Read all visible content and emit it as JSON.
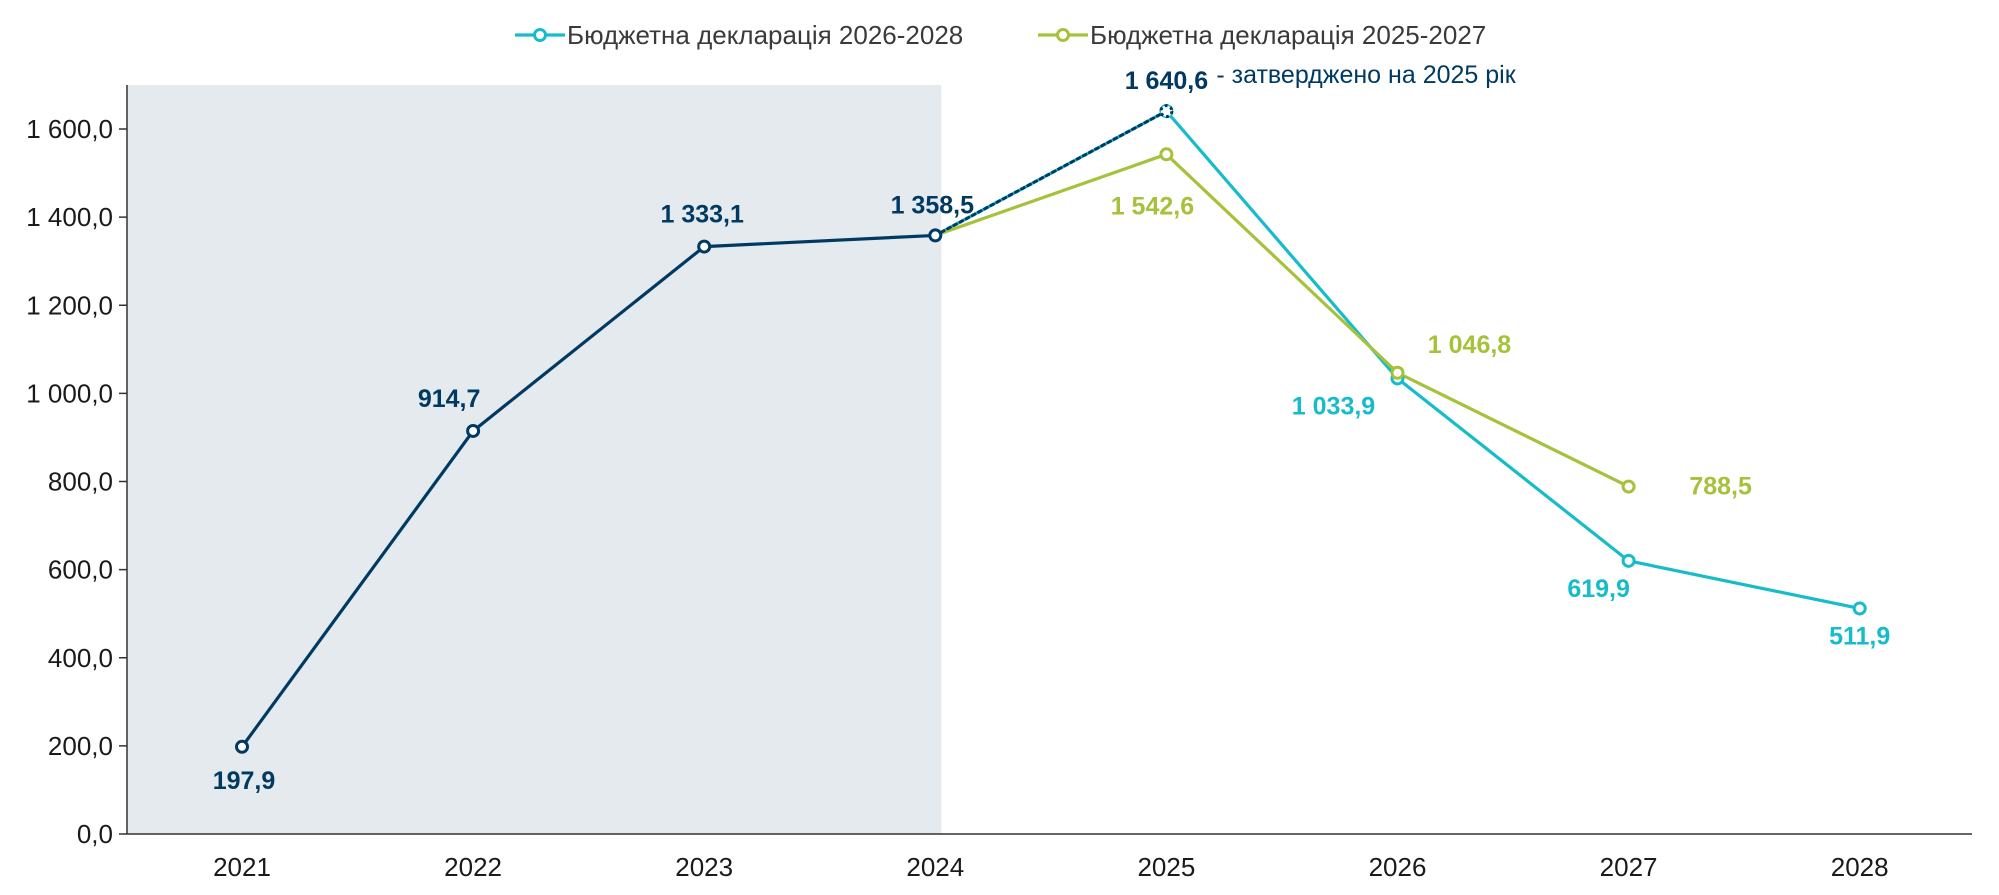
{
  "colors": {
    "actual": "#003a63",
    "decl_2026_2028": "#17bccb",
    "decl_2025_2027": "#a6c13a",
    "shade": "#e5eaef",
    "axis": "#333333"
  },
  "chart_data": {
    "type": "line",
    "x": [
      "2021",
      "2022",
      "2023",
      "2024",
      "2025",
      "2026",
      "2027",
      "2028"
    ],
    "ylim": [
      0,
      1700
    ],
    "yticks": [
      0,
      200,
      400,
      600,
      800,
      1000,
      1200,
      1400,
      1600
    ],
    "ytick_labels": [
      "0,0",
      "200,0",
      "400,0",
      "600,0",
      "800,0",
      "1 000,0",
      "1 200,0",
      "1 400,0",
      "1 600,0"
    ],
    "grid": false,
    "legend_position": "top-center",
    "shaded_period": [
      "2021",
      "2024"
    ],
    "series": [
      {
        "key": "actual",
        "x": [
          "2021",
          "2022",
          "2023",
          "2024"
        ],
        "values": [
          197.9,
          914.7,
          1333.1,
          1358.5
        ],
        "labels": [
          "197,9",
          "914,7",
          "1 333,1",
          "1 358,5"
        ]
      },
      {
        "key": "decl_2026_2028",
        "name": "Бюджетна декларація 2026-2028",
        "x": [
          "2024",
          "2025",
          "2026",
          "2027",
          "2028"
        ],
        "values": [
          1358.5,
          1640.6,
          1033.9,
          619.9,
          511.9
        ],
        "labels": [
          "",
          "",
          "1 033,9",
          "619,9",
          "511,9"
        ]
      },
      {
        "key": "decl_2025_2027",
        "name": "Бюджетна декларація 2025-2027",
        "x": [
          "2024",
          "2025",
          "2026",
          "2027"
        ],
        "values": [
          1358.5,
          1542.6,
          1046.8,
          788.5
        ],
        "labels": [
          "",
          "1 542,6",
          "1 046,8",
          "788,5"
        ]
      },
      {
        "key": "approved",
        "x": [
          "2024",
          "2025"
        ],
        "values": [
          1358.5,
          1640.6
        ],
        "labels": [
          "",
          "1 640,6"
        ]
      }
    ],
    "annotations": [
      {
        "x": "2025",
        "value": 1640.6,
        "text": "- затверджено на 2025 рік"
      }
    ]
  }
}
